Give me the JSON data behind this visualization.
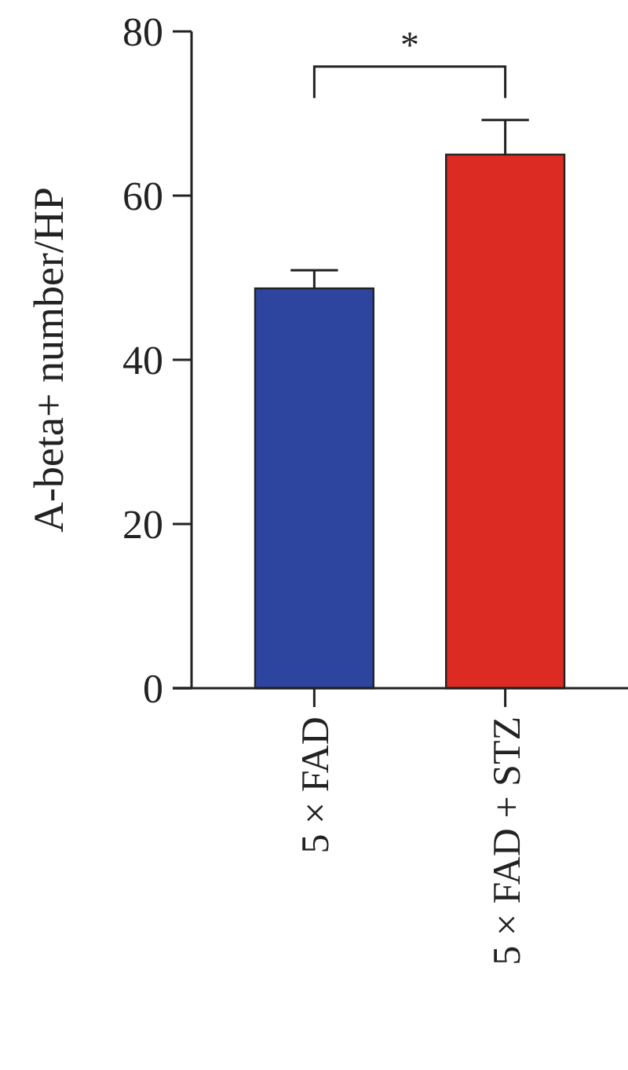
{
  "chart_data": {
    "type": "bar",
    "ylabel": "A-beta+ number/HP",
    "categories": [
      "5 × FAD",
      "5 × FAD + STZ"
    ],
    "values": [
      48.7,
      65.0
    ],
    "colors": [
      "#2e45a0",
      "#dc2b23"
    ],
    "errors": [
      [
        48.7,
        50.9
      ],
      [
        65.0,
        69.2
      ]
    ],
    "ylim": [
      0,
      80
    ],
    "yticks": [
      0,
      20,
      40,
      60,
      80
    ],
    "annotations": [
      "*"
    ]
  }
}
